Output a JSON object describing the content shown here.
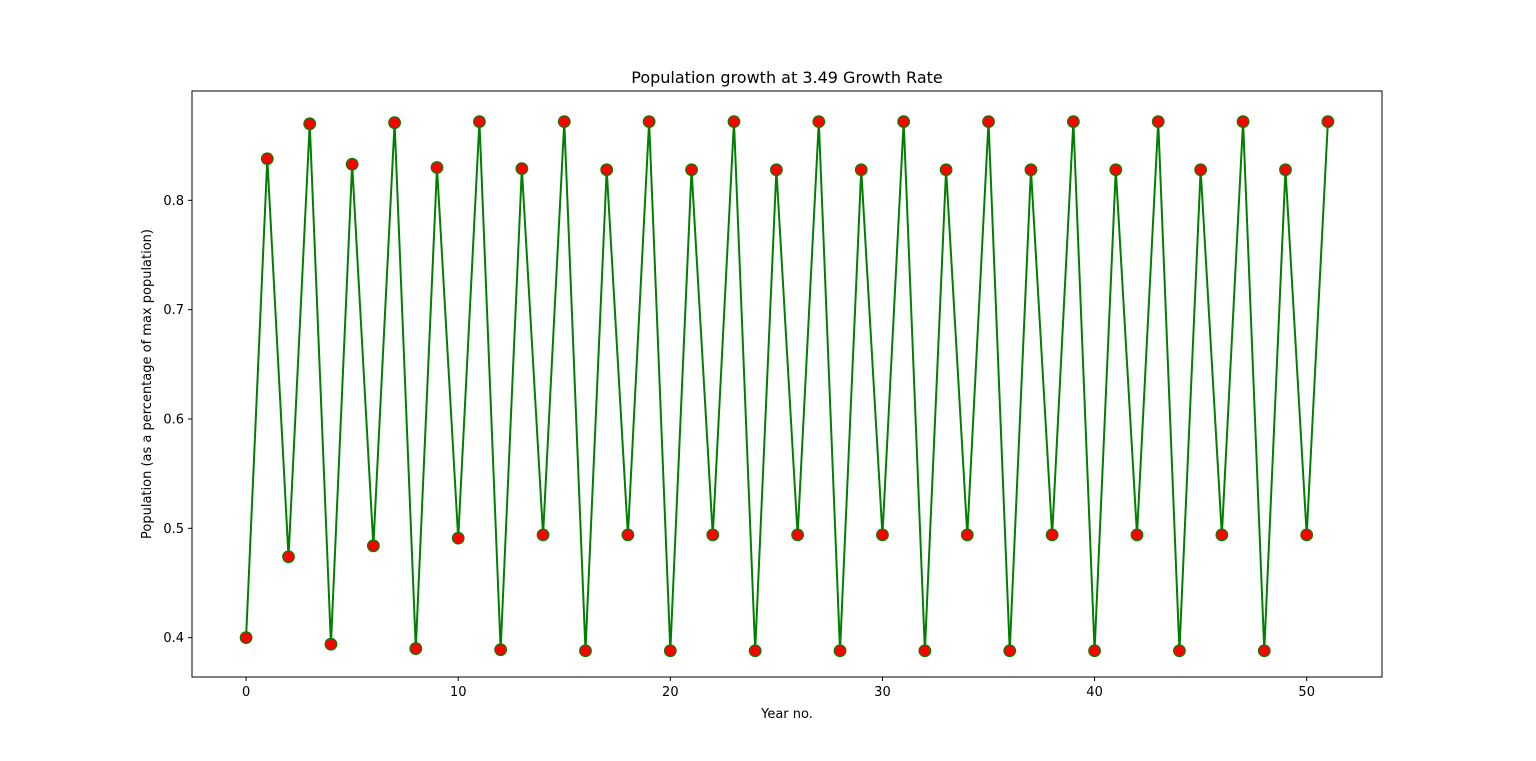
{
  "chart_data": {
    "type": "line",
    "title": "Population growth at 3.49 Growth Rate",
    "xlabel": "Year no.",
    "ylabel": "Population (as a percentage of max population)",
    "xlim": [
      -2.55,
      53.55
    ],
    "ylim": [
      0.364,
      0.9
    ],
    "xticks": [
      0,
      10,
      20,
      30,
      40,
      50
    ],
    "yticks": [
      0.4,
      0.5,
      0.6,
      0.7,
      0.8
    ],
    "x": [
      0,
      1,
      2,
      3,
      4,
      5,
      6,
      7,
      8,
      9,
      10,
      11,
      12,
      13,
      14,
      15,
      16,
      17,
      18,
      19,
      20,
      21,
      22,
      23,
      24,
      25,
      26,
      27,
      28,
      29,
      30,
      31,
      32,
      33,
      34,
      35,
      36,
      37,
      38,
      39,
      40,
      41,
      42,
      43,
      44,
      45,
      46,
      47,
      48,
      49,
      50,
      51
    ],
    "series": [
      {
        "values": [
          0.4,
          0.838,
          0.474,
          0.87,
          0.394,
          0.833,
          0.484,
          0.871,
          0.39,
          0.83,
          0.491,
          0.872,
          0.389,
          0.829,
          0.494,
          0.872,
          0.388,
          0.828,
          0.494,
          0.872,
          0.388,
          0.828,
          0.494,
          0.872,
          0.388,
          0.828,
          0.494,
          0.872,
          0.388,
          0.828,
          0.494,
          0.872,
          0.388,
          0.828,
          0.494,
          0.872,
          0.388,
          0.828,
          0.494,
          0.872,
          0.388,
          0.828,
          0.494,
          0.872,
          0.388,
          0.828,
          0.494,
          0.872,
          0.388,
          0.828,
          0.494,
          0.872
        ],
        "line_color": "#008000",
        "marker_face_color": "#ff0000",
        "marker_edge_color": "#008000"
      }
    ],
    "grid": false,
    "legend": "none"
  }
}
